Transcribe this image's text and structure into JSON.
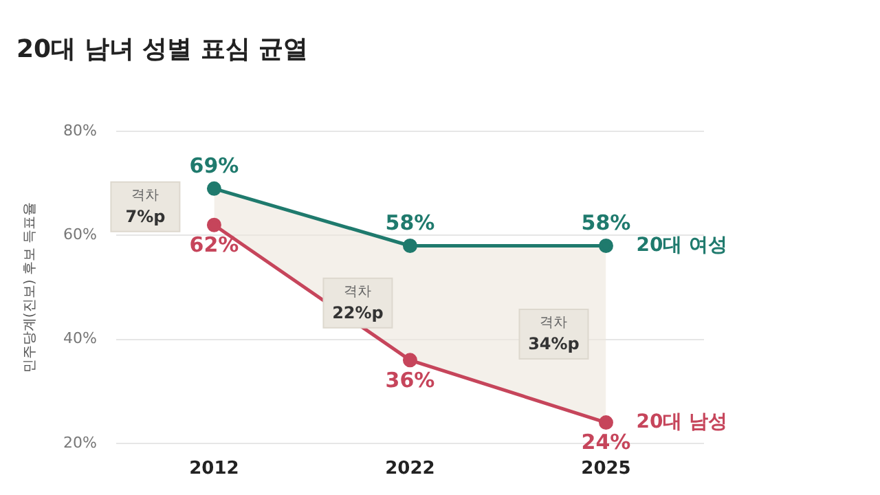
{
  "chart_data": {
    "type": "line",
    "title": "20대 남녀 성별 표심 균열",
    "ylabel": "민주당계(진보) 후보 득표율",
    "categories": [
      "2012",
      "2022",
      "2025"
    ],
    "series": [
      {
        "name": "20대 여성",
        "color": "#1f7a6d",
        "values": [
          69,
          58,
          58
        ],
        "value_labels": [
          "69%",
          "58%",
          "58%"
        ],
        "lower": [
          62,
          36,
          24
        ],
        "upper": [
          69,
          58,
          58
        ]
      },
      {
        "name": "20대 남성",
        "color": "#c6455b",
        "values": [
          62,
          36,
          24
        ],
        "value_labels": [
          "62%",
          "36%",
          "24%"
        ]
      }
    ],
    "ylim": [
      20,
      80
    ],
    "yticks": [
      {
        "value": 20,
        "label": "20%"
      },
      {
        "value": 40,
        "label": "40%"
      },
      {
        "value": 60,
        "label": "60%"
      },
      {
        "value": 80,
        "label": "80%"
      }
    ],
    "grid": "y",
    "legend": false,
    "marker": "circle",
    "line_style": "solid",
    "annotations": [
      "격차 7%p",
      "격차 22%p",
      "격차 34%p"
    ]
  }
}
